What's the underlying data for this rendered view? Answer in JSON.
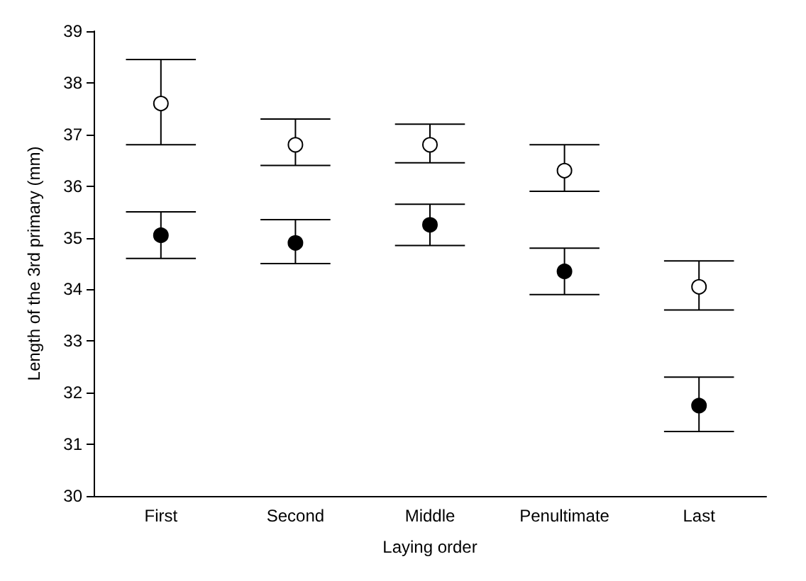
{
  "chart_data": {
    "type": "scatter",
    "xlabel": "Laying order",
    "ylabel": "Length of the 3rd primary (mm)",
    "categories": [
      "First",
      "Second",
      "Middle",
      "Penultimate",
      "Last"
    ],
    "series": [
      {
        "color": "#ffffff",
        "values": [
          37.6,
          36.8,
          36.8,
          36.3,
          34.05
        ],
        "errors": [
          [
            36.8,
            38.45
          ],
          [
            36.4,
            37.3
          ],
          [
            36.45,
            37.2
          ],
          [
            35.9,
            36.8
          ],
          [
            33.6,
            34.55
          ]
        ]
      },
      {
        "color": "#000000",
        "values": [
          35.05,
          34.9,
          35.25,
          34.35,
          31.75
        ],
        "errors": [
          [
            34.6,
            35.5
          ],
          [
            34.5,
            35.35
          ],
          [
            34.85,
            35.65
          ],
          [
            33.9,
            34.8
          ],
          [
            31.25,
            32.3
          ]
        ]
      }
    ],
    "ylim": [
      30,
      39
    ],
    "yticks": [
      30,
      31,
      32,
      33,
      34,
      35,
      36,
      37,
      38,
      39
    ],
    "marker": "circle"
  }
}
